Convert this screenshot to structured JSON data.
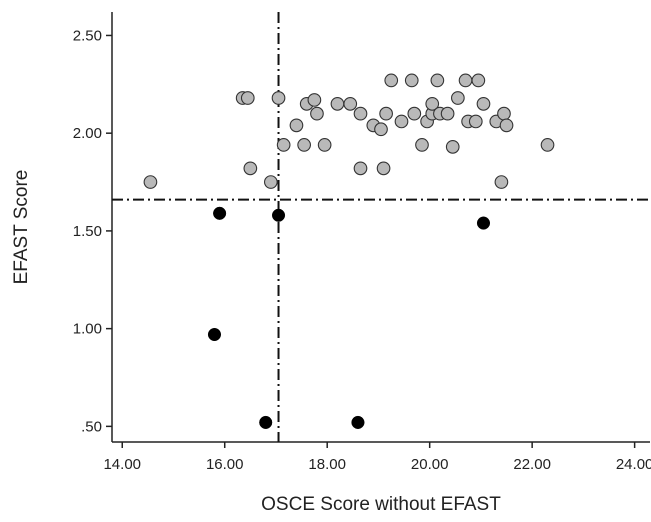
{
  "chart_data": {
    "type": "scatter",
    "title": "",
    "xlabel": "OSCE Score without EFAST",
    "ylabel": "EFAST Score",
    "xlim": [
      13.8,
      24.3
    ],
    "ylim": [
      0.42,
      2.62
    ],
    "x_ticks": [
      {
        "value": 14,
        "label": "14.00"
      },
      {
        "value": 16,
        "label": "16.00"
      },
      {
        "value": 18,
        "label": "18.00"
      },
      {
        "value": 20,
        "label": "20.00"
      },
      {
        "value": 22,
        "label": "22.00"
      },
      {
        "value": 24,
        "label": "24.00"
      }
    ],
    "y_ticks": [
      {
        "value": 0.5,
        "label": ".50"
      },
      {
        "value": 1.0,
        "label": "1.00"
      },
      {
        "value": 1.5,
        "label": "1.50"
      },
      {
        "value": 2.0,
        "label": "2.00"
      },
      {
        "value": 2.5,
        "label": "2.50"
      }
    ],
    "grid": false,
    "reference_lines": {
      "vertical_x": 17.05,
      "horizontal_y": 1.66,
      "style": "dash-dot"
    },
    "series": [
      {
        "marker": "gray-circle",
        "color": "#b9b9b9",
        "points": [
          [
            14.55,
            1.75
          ],
          [
            16.35,
            2.18
          ],
          [
            16.45,
            2.18
          ],
          [
            16.5,
            1.82
          ],
          [
            16.9,
            1.75
          ],
          [
            17.05,
            2.18
          ],
          [
            17.15,
            1.94
          ],
          [
            17.4,
            2.04
          ],
          [
            17.55,
            1.94
          ],
          [
            17.6,
            2.15
          ],
          [
            17.75,
            2.17
          ],
          [
            17.8,
            2.1
          ],
          [
            17.95,
            1.94
          ],
          [
            18.2,
            2.15
          ],
          [
            18.45,
            2.15
          ],
          [
            18.65,
            2.1
          ],
          [
            18.65,
            1.82
          ],
          [
            18.9,
            2.04
          ],
          [
            19.05,
            2.02
          ],
          [
            19.1,
            1.82
          ],
          [
            19.15,
            2.1
          ],
          [
            19.25,
            2.27
          ],
          [
            19.45,
            2.06
          ],
          [
            19.65,
            2.27
          ],
          [
            19.7,
            2.1
          ],
          [
            19.85,
            1.94
          ],
          [
            19.95,
            2.06
          ],
          [
            20.05,
            2.1
          ],
          [
            20.05,
            2.15
          ],
          [
            20.15,
            2.27
          ],
          [
            20.2,
            2.1
          ],
          [
            20.35,
            2.1
          ],
          [
            20.45,
            1.93
          ],
          [
            20.55,
            2.18
          ],
          [
            20.7,
            2.27
          ],
          [
            20.75,
            2.06
          ],
          [
            20.9,
            2.06
          ],
          [
            20.95,
            2.27
          ],
          [
            21.05,
            2.15
          ],
          [
            21.3,
            2.06
          ],
          [
            21.45,
            2.1
          ],
          [
            21.5,
            2.04
          ],
          [
            21.4,
            1.75
          ],
          [
            22.3,
            1.94
          ]
        ]
      },
      {
        "marker": "black-circle",
        "color": "#000000",
        "points": [
          [
            15.9,
            1.59
          ],
          [
            15.8,
            0.97
          ],
          [
            16.8,
            0.52
          ],
          [
            17.05,
            1.58
          ],
          [
            18.6,
            0.52
          ],
          [
            21.05,
            1.54
          ]
        ]
      }
    ]
  }
}
